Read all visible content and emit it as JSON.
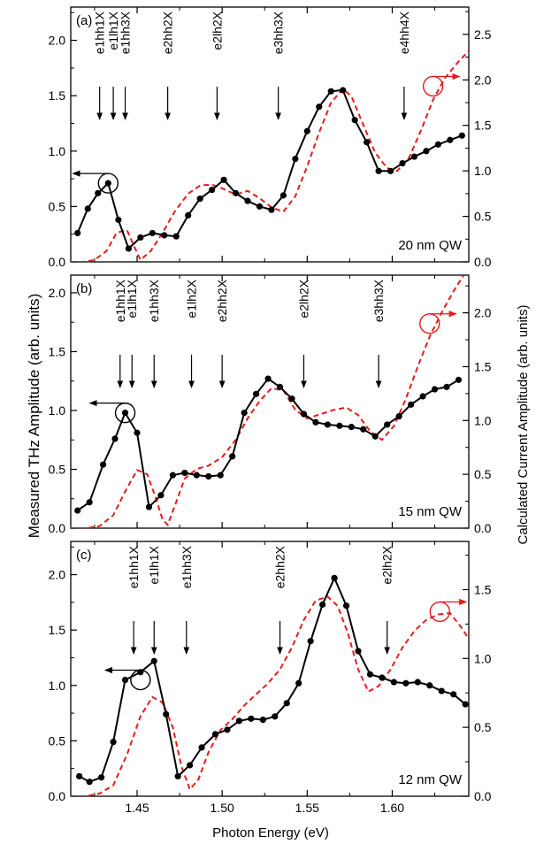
{
  "x_axis_label": "Photon Energy (eV)",
  "left_axis_label": "Measured THz Amplitude (arb. units)",
  "right_axis_label": "Calculated Current Amplitude (arb. units)",
  "x_tick_labels": [
    "1.45",
    "1.50",
    "1.55",
    "1.60"
  ],
  "colors": {
    "measured": "#000000",
    "calculated": "#e8191c",
    "axis": "#000000"
  },
  "chart_data": [
    {
      "type": "line",
      "panel_label": "(a)",
      "annotation": "20 nm QW",
      "xlim": [
        1.411,
        1.645
      ],
      "ylim_left": [
        0.0,
        2.3
      ],
      "ylim_right": [
        0.0,
        2.8
      ],
      "left_ticks": [
        0.0,
        0.5,
        1.0,
        1.5,
        2.0
      ],
      "right_ticks": [
        0.0,
        0.5,
        1.0,
        1.5,
        2.0,
        2.5
      ],
      "left_tick_labels": [
        "0.0",
        "0.5",
        "1.0",
        "1.5",
        "2.0"
      ],
      "right_tick_labels": [
        "0.0",
        "0.5",
        "1.0",
        "1.5",
        "2.0",
        "2.5"
      ],
      "transitions": [
        {
          "label": "e1hh1X",
          "x": 1.428
        },
        {
          "label": "e1lh1X",
          "x": 1.436
        },
        {
          "label": "e1hh3X",
          "x": 1.443
        },
        {
          "label": "e2hh2X",
          "x": 1.468
        },
        {
          "label": "e2lh2X",
          "x": 1.497
        },
        {
          "label": "e3hh3X",
          "x": 1.533
        },
        {
          "label": "e4hh4X",
          "x": 1.607
        }
      ],
      "circles": [
        {
          "series": "measured",
          "x": 1.433,
          "y": 0.71,
          "axis": "left",
          "arrow": "left"
        },
        {
          "series": "calculated",
          "x": 1.624,
          "y": 1.93,
          "axis": "right",
          "arrow": "right"
        }
      ],
      "series": [
        {
          "key": "measured",
          "axis": "left",
          "x": [
            1.415,
            1.421,
            1.427,
            1.433,
            1.439,
            1.445,
            1.452,
            1.459,
            1.466,
            1.473,
            1.48,
            1.487,
            1.494,
            1.501,
            1.508,
            1.515,
            1.522,
            1.529,
            1.536,
            1.543,
            1.55,
            1.557,
            1.564,
            1.571,
            1.578,
            1.585,
            1.592,
            1.599,
            1.606,
            1.613,
            1.62,
            1.627,
            1.634,
            1.641
          ],
          "y": [
            0.26,
            0.48,
            0.62,
            0.71,
            0.38,
            0.12,
            0.22,
            0.26,
            0.24,
            0.23,
            0.42,
            0.57,
            0.65,
            0.74,
            0.62,
            0.55,
            0.5,
            0.47,
            0.6,
            0.93,
            1.18,
            1.4,
            1.54,
            1.55,
            1.28,
            1.08,
            0.82,
            0.82,
            0.89,
            0.95,
            1.0,
            1.06,
            1.1,
            1.14
          ]
        },
        {
          "key": "calculated",
          "axis": "right",
          "x": [
            1.411,
            1.418,
            1.425,
            1.432,
            1.438,
            1.444,
            1.448,
            1.452,
            1.458,
            1.465,
            1.472,
            1.48,
            1.487,
            1.494,
            1.501,
            1.508,
            1.515,
            1.522,
            1.529,
            1.536,
            1.543,
            1.55,
            1.557,
            1.564,
            1.571,
            1.576,
            1.582,
            1.59,
            1.597,
            1.603,
            1.61,
            1.617,
            1.624,
            1.631,
            1.638,
            1.645
          ],
          "y": [
            0.0,
            0.0,
            0.02,
            0.12,
            0.32,
            0.35,
            0.18,
            0.02,
            0.12,
            0.32,
            0.55,
            0.75,
            0.84,
            0.85,
            0.8,
            0.74,
            0.78,
            0.7,
            0.6,
            0.55,
            0.72,
            1.05,
            1.42,
            1.75,
            1.9,
            1.82,
            1.55,
            1.2,
            1.03,
            1.0,
            1.15,
            1.45,
            1.78,
            2.02,
            2.18,
            2.32
          ]
        }
      ]
    },
    {
      "type": "line",
      "panel_label": "(b)",
      "annotation": "15 nm QW",
      "xlim": [
        1.411,
        1.645
      ],
      "ylim_left": [
        0.0,
        2.15
      ],
      "ylim_right": [
        0.0,
        2.35
      ],
      "left_ticks": [
        0.0,
        0.5,
        1.0,
        1.5,
        2.0
      ],
      "right_ticks": [
        0.0,
        0.5,
        1.0,
        1.5,
        2.0
      ],
      "left_tick_labels": [
        "0.0",
        "0.5",
        "1.0",
        "1.5",
        "2.0"
      ],
      "right_tick_labels": [
        "0.0",
        "0.5",
        "1.0",
        "1.5",
        "2.0"
      ],
      "transitions": [
        {
          "label": "e1hh1X",
          "x": 1.44
        },
        {
          "label": "e1lh1X",
          "x": 1.447
        },
        {
          "label": "e1hh3X",
          "x": 1.46
        },
        {
          "label": "e1lh2X",
          "x": 1.482
        },
        {
          "label": "e2hh2X",
          "x": 1.5
        },
        {
          "label": "e2lh2X",
          "x": 1.548
        },
        {
          "label": "e3hh3X",
          "x": 1.592
        }
      ],
      "circles": [
        {
          "series": "measured",
          "x": 1.443,
          "y": 0.98,
          "axis": "left",
          "arrow": "left"
        },
        {
          "series": "calculated",
          "x": 1.622,
          "y": 1.9,
          "axis": "right",
          "arrow": "right"
        }
      ],
      "series": [
        {
          "key": "measured",
          "axis": "left",
          "x": [
            1.415,
            1.422,
            1.43,
            1.437,
            1.443,
            1.45,
            1.457,
            1.464,
            1.471,
            1.478,
            1.485,
            1.492,
            1.499,
            1.506,
            1.513,
            1.52,
            1.527,
            1.534,
            1.541,
            1.548,
            1.555,
            1.562,
            1.569,
            1.576,
            1.583,
            1.59,
            1.597,
            1.604,
            1.611,
            1.618,
            1.625,
            1.632,
            1.639
          ],
          "y": [
            0.15,
            0.22,
            0.54,
            0.76,
            0.98,
            0.81,
            0.18,
            0.28,
            0.45,
            0.47,
            0.45,
            0.44,
            0.45,
            0.61,
            0.98,
            1.14,
            1.27,
            1.2,
            1.1,
            0.97,
            0.9,
            0.88,
            0.87,
            0.86,
            0.84,
            0.78,
            0.88,
            0.95,
            1.05,
            1.12,
            1.18,
            1.2,
            1.26
          ]
        },
        {
          "key": "calculated",
          "axis": "right",
          "x": [
            1.411,
            1.42,
            1.428,
            1.436,
            1.443,
            1.45,
            1.456,
            1.461,
            1.465,
            1.468,
            1.472,
            1.478,
            1.485,
            1.492,
            1.5,
            1.508,
            1.515,
            1.522,
            1.529,
            1.536,
            1.543,
            1.55,
            1.558,
            1.566,
            1.573,
            1.58,
            1.587,
            1.594,
            1.601,
            1.608,
            1.615,
            1.622,
            1.629,
            1.636,
            1.642
          ],
          "y": [
            0.0,
            0.0,
            0.02,
            0.12,
            0.34,
            0.54,
            0.5,
            0.28,
            0.08,
            0.03,
            0.2,
            0.46,
            0.55,
            0.58,
            0.66,
            0.82,
            1.02,
            1.18,
            1.3,
            1.28,
            1.1,
            1.02,
            1.06,
            1.1,
            1.12,
            1.05,
            0.9,
            0.82,
            0.95,
            1.2,
            1.5,
            1.78,
            2.0,
            2.2,
            2.35
          ]
        }
      ]
    },
    {
      "type": "line",
      "panel_label": "(c)",
      "annotation": "12 nm QW",
      "xlim": [
        1.411,
        1.645
      ],
      "ylim_left": [
        0.0,
        2.3
      ],
      "ylim_right": [
        0.0,
        1.85
      ],
      "left_ticks": [
        0.0,
        0.5,
        1.0,
        1.5,
        2.0
      ],
      "right_ticks": [
        0.0,
        0.5,
        1.0,
        1.5
      ],
      "left_tick_labels": [
        "0.0",
        "0.5",
        "1.0",
        "1.5",
        "2.0"
      ],
      "right_tick_labels": [
        "0.0",
        "0.5",
        "1.0",
        "1.5"
      ],
      "transitions": [
        {
          "label": "e1hh1X",
          "x": 1.448
        },
        {
          "label": "e1lh1X",
          "x": 1.46
        },
        {
          "label": "e1hh3X",
          "x": 1.479
        },
        {
          "label": "e2hh2X",
          "x": 1.534
        },
        {
          "label": "e2lh2X",
          "x": 1.597
        }
      ],
      "circles": [
        {
          "series": "measured",
          "x": 1.452,
          "y": 1.05,
          "axis": "left",
          "arrow": "left"
        },
        {
          "series": "calculated",
          "x": 1.628,
          "y": 1.34,
          "axis": "right",
          "arrow": "right"
        }
      ],
      "series": [
        {
          "key": "measured",
          "axis": "left",
          "x": [
            1.416,
            1.422,
            1.429,
            1.436,
            1.443,
            1.452,
            1.46,
            1.467,
            1.474,
            1.481,
            1.488,
            1.496,
            1.503,
            1.51,
            1.517,
            1.524,
            1.531,
            1.538,
            1.545,
            1.552,
            1.559,
            1.566,
            1.573,
            1.58,
            1.587,
            1.594,
            1.601,
            1.608,
            1.615,
            1.622,
            1.629,
            1.636,
            1.643
          ],
          "y": [
            0.18,
            0.13,
            0.17,
            0.49,
            1.05,
            1.12,
            1.22,
            0.74,
            0.18,
            0.28,
            0.44,
            0.56,
            0.6,
            0.68,
            0.7,
            0.69,
            0.72,
            0.84,
            1.02,
            1.4,
            1.73,
            1.97,
            1.72,
            1.31,
            1.1,
            1.07,
            1.03,
            1.02,
            1.03,
            1.0,
            0.95,
            0.92,
            0.83
          ]
        },
        {
          "key": "calculated",
          "axis": "right",
          "x": [
            1.411,
            1.42,
            1.428,
            1.436,
            1.444,
            1.452,
            1.459,
            1.465,
            1.471,
            1.476,
            1.481,
            1.486,
            1.492,
            1.499,
            1.506,
            1.513,
            1.52,
            1.527,
            1.534,
            1.541,
            1.548,
            1.555,
            1.562,
            1.568,
            1.574,
            1.58,
            1.586,
            1.592,
            1.599,
            1.606,
            1.613,
            1.62,
            1.627,
            1.634,
            1.641,
            1.645
          ],
          "y": [
            0.0,
            0.0,
            0.02,
            0.08,
            0.3,
            0.58,
            0.72,
            0.68,
            0.5,
            0.22,
            0.05,
            0.12,
            0.32,
            0.48,
            0.56,
            0.66,
            0.74,
            0.82,
            0.92,
            1.08,
            1.28,
            1.42,
            1.45,
            1.38,
            1.18,
            0.92,
            0.76,
            0.8,
            0.92,
            1.08,
            1.2,
            1.28,
            1.32,
            1.33,
            1.22,
            1.14
          ]
        }
      ]
    }
  ]
}
